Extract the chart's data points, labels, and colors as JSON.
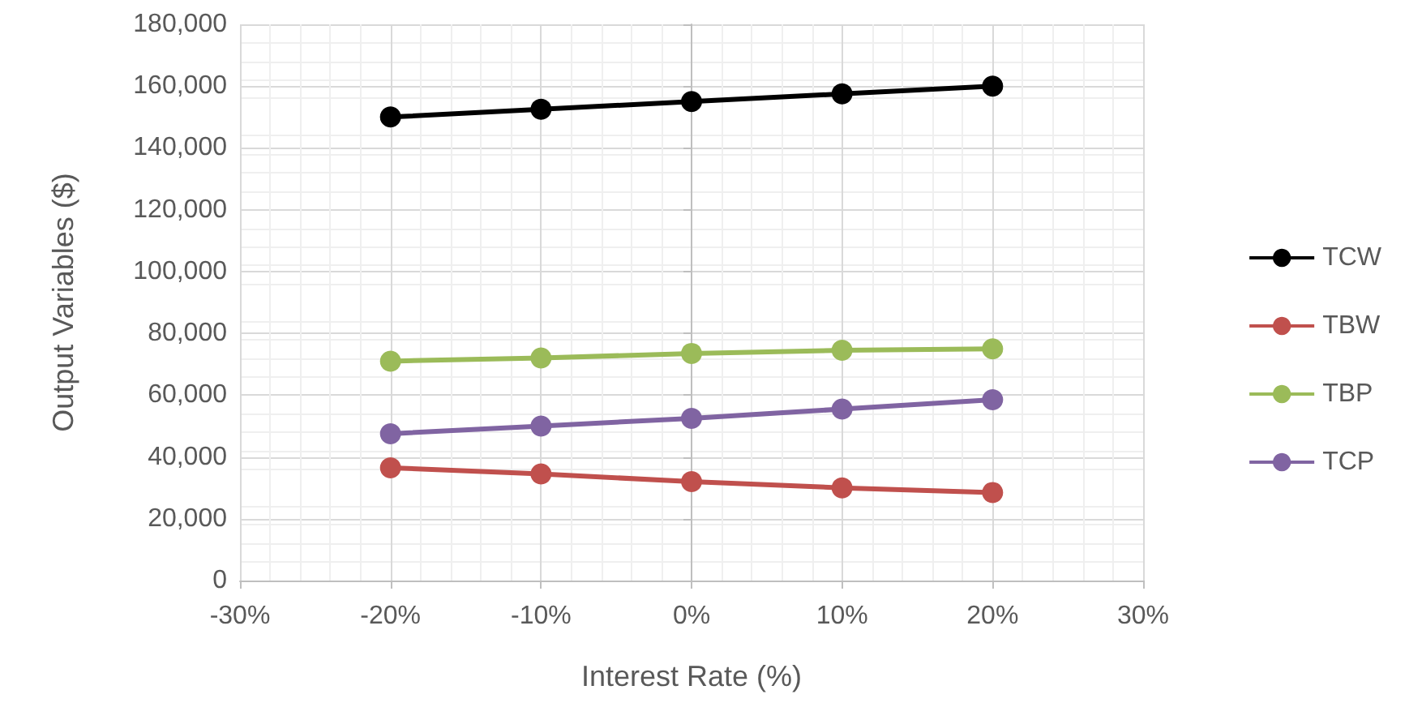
{
  "chart_data": {
    "type": "line",
    "xlabel": "Interest Rate (%)",
    "ylabel": "Output Variables ($)",
    "x": [
      -20,
      -10,
      0,
      10,
      20
    ],
    "series": [
      {
        "name": "TCW",
        "color": "#000000",
        "values": [
          150000,
          152500,
          155000,
          157500,
          160000
        ]
      },
      {
        "name": "TBW",
        "color": "#c0504d",
        "values": [
          36500,
          34500,
          32000,
          30000,
          28500
        ]
      },
      {
        "name": "TBP",
        "color": "#9bbb59",
        "values": [
          71000,
          72000,
          73500,
          74500,
          75000
        ]
      },
      {
        "name": "TCP",
        "color": "#8064a2",
        "values": [
          47500,
          50000,
          52500,
          55500,
          58500
        ]
      }
    ],
    "xlim": [
      -30,
      30
    ],
    "xticks": [
      {
        "value": -30,
        "label": "-30%"
      },
      {
        "value": -20,
        "label": "-20%"
      },
      {
        "value": -10,
        "label": "-10%"
      },
      {
        "value": 0,
        "label": "0%"
      },
      {
        "value": 10,
        "label": "10%"
      },
      {
        "value": 20,
        "label": "20%"
      },
      {
        "value": 30,
        "label": "30%"
      }
    ],
    "ylim": [
      0,
      180000
    ],
    "yticks": [
      {
        "value": 0,
        "label": "0"
      },
      {
        "value": 20000,
        "label": "20,000"
      },
      {
        "value": 40000,
        "label": "40,000"
      },
      {
        "value": 60000,
        "label": "60,000"
      },
      {
        "value": 80000,
        "label": "80,000"
      },
      {
        "value": 100000,
        "label": "100,000"
      },
      {
        "value": 120000,
        "label": "120,000"
      },
      {
        "value": 140000,
        "label": "140,000"
      },
      {
        "value": 160000,
        "label": "160,000"
      },
      {
        "value": 180000,
        "label": "180,000"
      }
    ],
    "grid": true,
    "legend": "right",
    "marker": "circle",
    "line_style": "solid"
  }
}
